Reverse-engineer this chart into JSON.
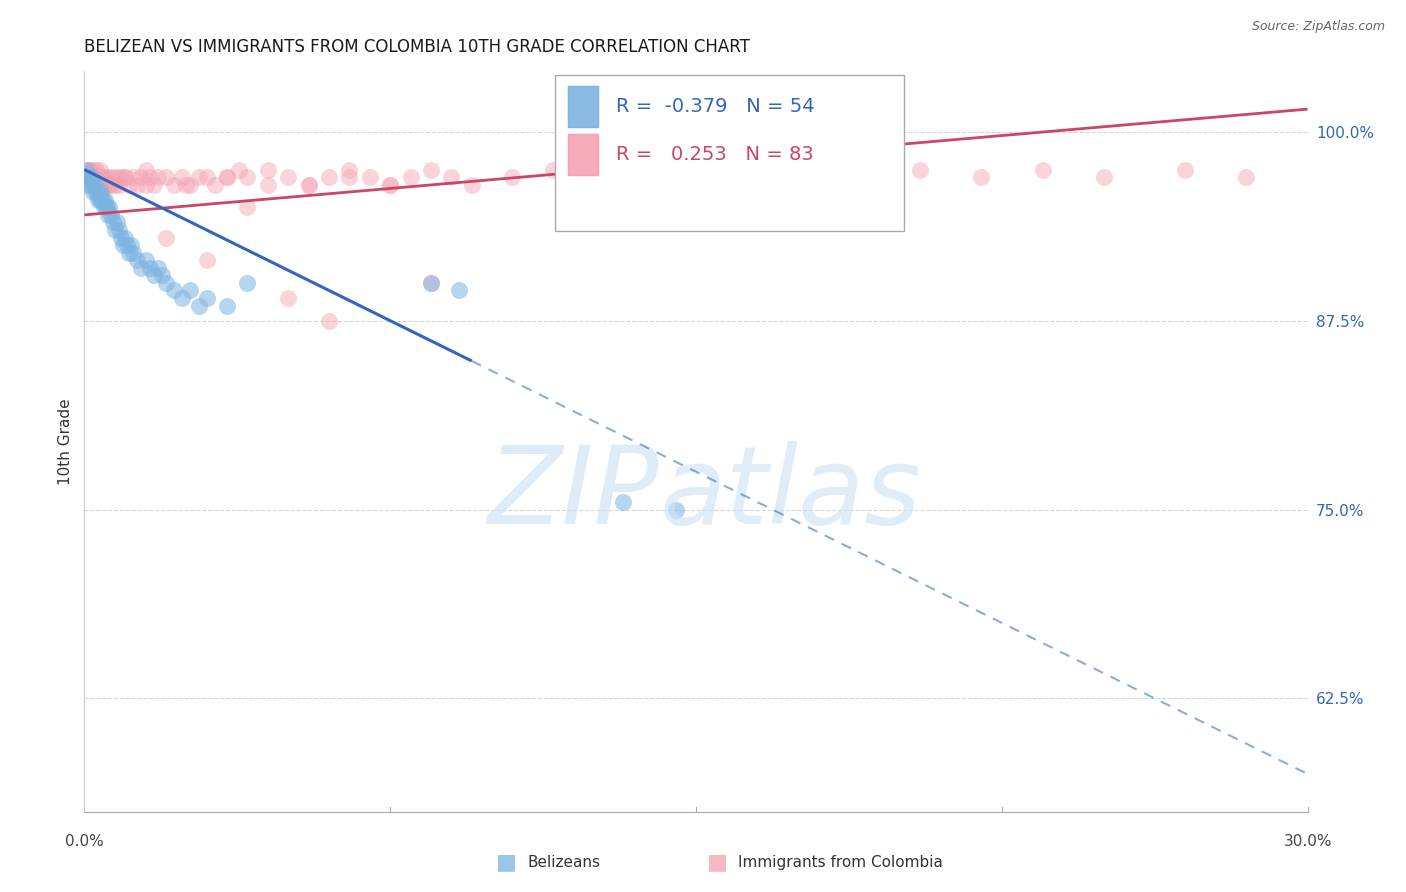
{
  "title": "BELIZEAN VS IMMIGRANTS FROM COLOMBIA 10TH GRADE CORRELATION CHART",
  "source": "Source: ZipAtlas.com",
  "ylabel": "10th Grade",
  "xlim": [
    0.0,
    30.0
  ],
  "ylim": [
    55.0,
    104.0
  ],
  "yticks": [
    62.5,
    75.0,
    87.5,
    100.0
  ],
  "ytick_labels": [
    "62.5%",
    "75.0%",
    "87.5%",
    "100.0%"
  ],
  "blue_color": "#7ab3e0",
  "pink_color": "#f4a0b0",
  "blue_line_color": "#3366bb",
  "pink_line_color": "#cc4466",
  "blue_R": "-0.379",
  "blue_N": "54",
  "pink_R": "0.253",
  "pink_N": "83",
  "blue_label": "Belizeans",
  "pink_label": "Immigrants from Colombia",
  "blue_scatter_x": [
    0.05,
    0.08,
    0.1,
    0.12,
    0.15,
    0.18,
    0.2,
    0.22,
    0.25,
    0.28,
    0.3,
    0.33,
    0.35,
    0.38,
    0.4,
    0.42,
    0.45,
    0.48,
    0.5,
    0.53,
    0.55,
    0.58,
    0.6,
    0.65,
    0.7,
    0.75,
    0.8,
    0.85,
    0.9,
    0.95,
    1.0,
    1.05,
    1.1,
    1.15,
    1.2,
    1.3,
    1.4,
    1.5,
    1.6,
    1.7,
    1.8,
    1.9,
    2.0,
    2.2,
    2.4,
    2.6,
    2.8,
    3.0,
    3.5,
    4.0,
    8.5,
    9.2,
    13.2,
    14.5
  ],
  "blue_scatter_y": [
    97.5,
    97.0,
    96.5,
    97.0,
    96.5,
    97.0,
    96.5,
    96.0,
    96.5,
    96.0,
    96.0,
    95.5,
    96.0,
    95.5,
    96.0,
    95.5,
    95.5,
    95.0,
    95.5,
    95.0,
    95.0,
    94.5,
    95.0,
    94.5,
    94.0,
    93.5,
    94.0,
    93.5,
    93.0,
    92.5,
    93.0,
    92.5,
    92.0,
    92.5,
    92.0,
    91.5,
    91.0,
    91.5,
    91.0,
    90.5,
    91.0,
    90.5,
    90.0,
    89.5,
    89.0,
    89.5,
    88.5,
    89.0,
    88.5,
    90.0,
    90.0,
    89.5,
    75.5,
    75.0
  ],
  "pink_scatter_x": [
    0.08,
    0.12,
    0.15,
    0.18,
    0.2,
    0.22,
    0.25,
    0.28,
    0.3,
    0.33,
    0.35,
    0.38,
    0.4,
    0.42,
    0.45,
    0.48,
    0.5,
    0.55,
    0.6,
    0.65,
    0.7,
    0.75,
    0.8,
    0.85,
    0.9,
    1.0,
    1.1,
    1.2,
    1.3,
    1.4,
    1.5,
    1.6,
    1.7,
    1.8,
    2.0,
    2.2,
    2.4,
    2.6,
    2.8,
    3.0,
    3.2,
    3.5,
    3.8,
    4.0,
    4.5,
    5.0,
    5.5,
    6.0,
    6.5,
    7.0,
    7.5,
    8.0,
    8.5,
    9.0,
    9.5,
    10.5,
    11.5,
    13.0,
    14.5,
    16.0,
    17.5,
    19.0,
    20.5,
    22.0,
    23.5,
    25.0,
    27.0,
    28.5,
    0.6,
    1.0,
    1.5,
    2.5,
    3.5,
    4.5,
    5.5,
    6.5,
    7.5,
    2.0,
    3.0,
    5.0,
    6.0,
    4.0,
    8.5
  ],
  "pink_scatter_y": [
    97.5,
    97.0,
    97.5,
    97.0,
    97.5,
    97.0,
    97.0,
    97.5,
    97.0,
    96.5,
    97.0,
    97.5,
    97.0,
    96.5,
    97.0,
    96.5,
    97.0,
    96.5,
    97.0,
    96.5,
    97.0,
    96.5,
    97.0,
    96.5,
    97.0,
    97.0,
    96.5,
    97.0,
    96.5,
    97.0,
    96.5,
    97.0,
    96.5,
    97.0,
    97.0,
    96.5,
    97.0,
    96.5,
    97.0,
    97.0,
    96.5,
    97.0,
    97.5,
    97.0,
    96.5,
    97.0,
    96.5,
    97.0,
    97.5,
    97.0,
    96.5,
    97.0,
    97.5,
    97.0,
    96.5,
    97.0,
    97.5,
    97.0,
    96.5,
    97.0,
    97.5,
    97.0,
    97.5,
    97.0,
    97.5,
    97.0,
    97.5,
    97.0,
    96.5,
    97.0,
    97.5,
    96.5,
    97.0,
    97.5,
    96.5,
    97.0,
    96.5,
    93.0,
    91.5,
    89.0,
    87.5,
    95.0,
    90.0
  ],
  "blue_trend_x0": 0.0,
  "blue_trend_y0": 97.5,
  "blue_trend_x1": 30.0,
  "blue_trend_y1": 57.5,
  "blue_solid_end_x": 9.5,
  "pink_trend_x0": 0.0,
  "pink_trend_y0": 94.5,
  "pink_trend_x1": 30.0,
  "pink_trend_y1": 101.5,
  "background_color": "#ffffff",
  "grid_color": "#cccccc",
  "title_fontsize": 12,
  "axis_label_fontsize": 11,
  "tick_fontsize": 11
}
